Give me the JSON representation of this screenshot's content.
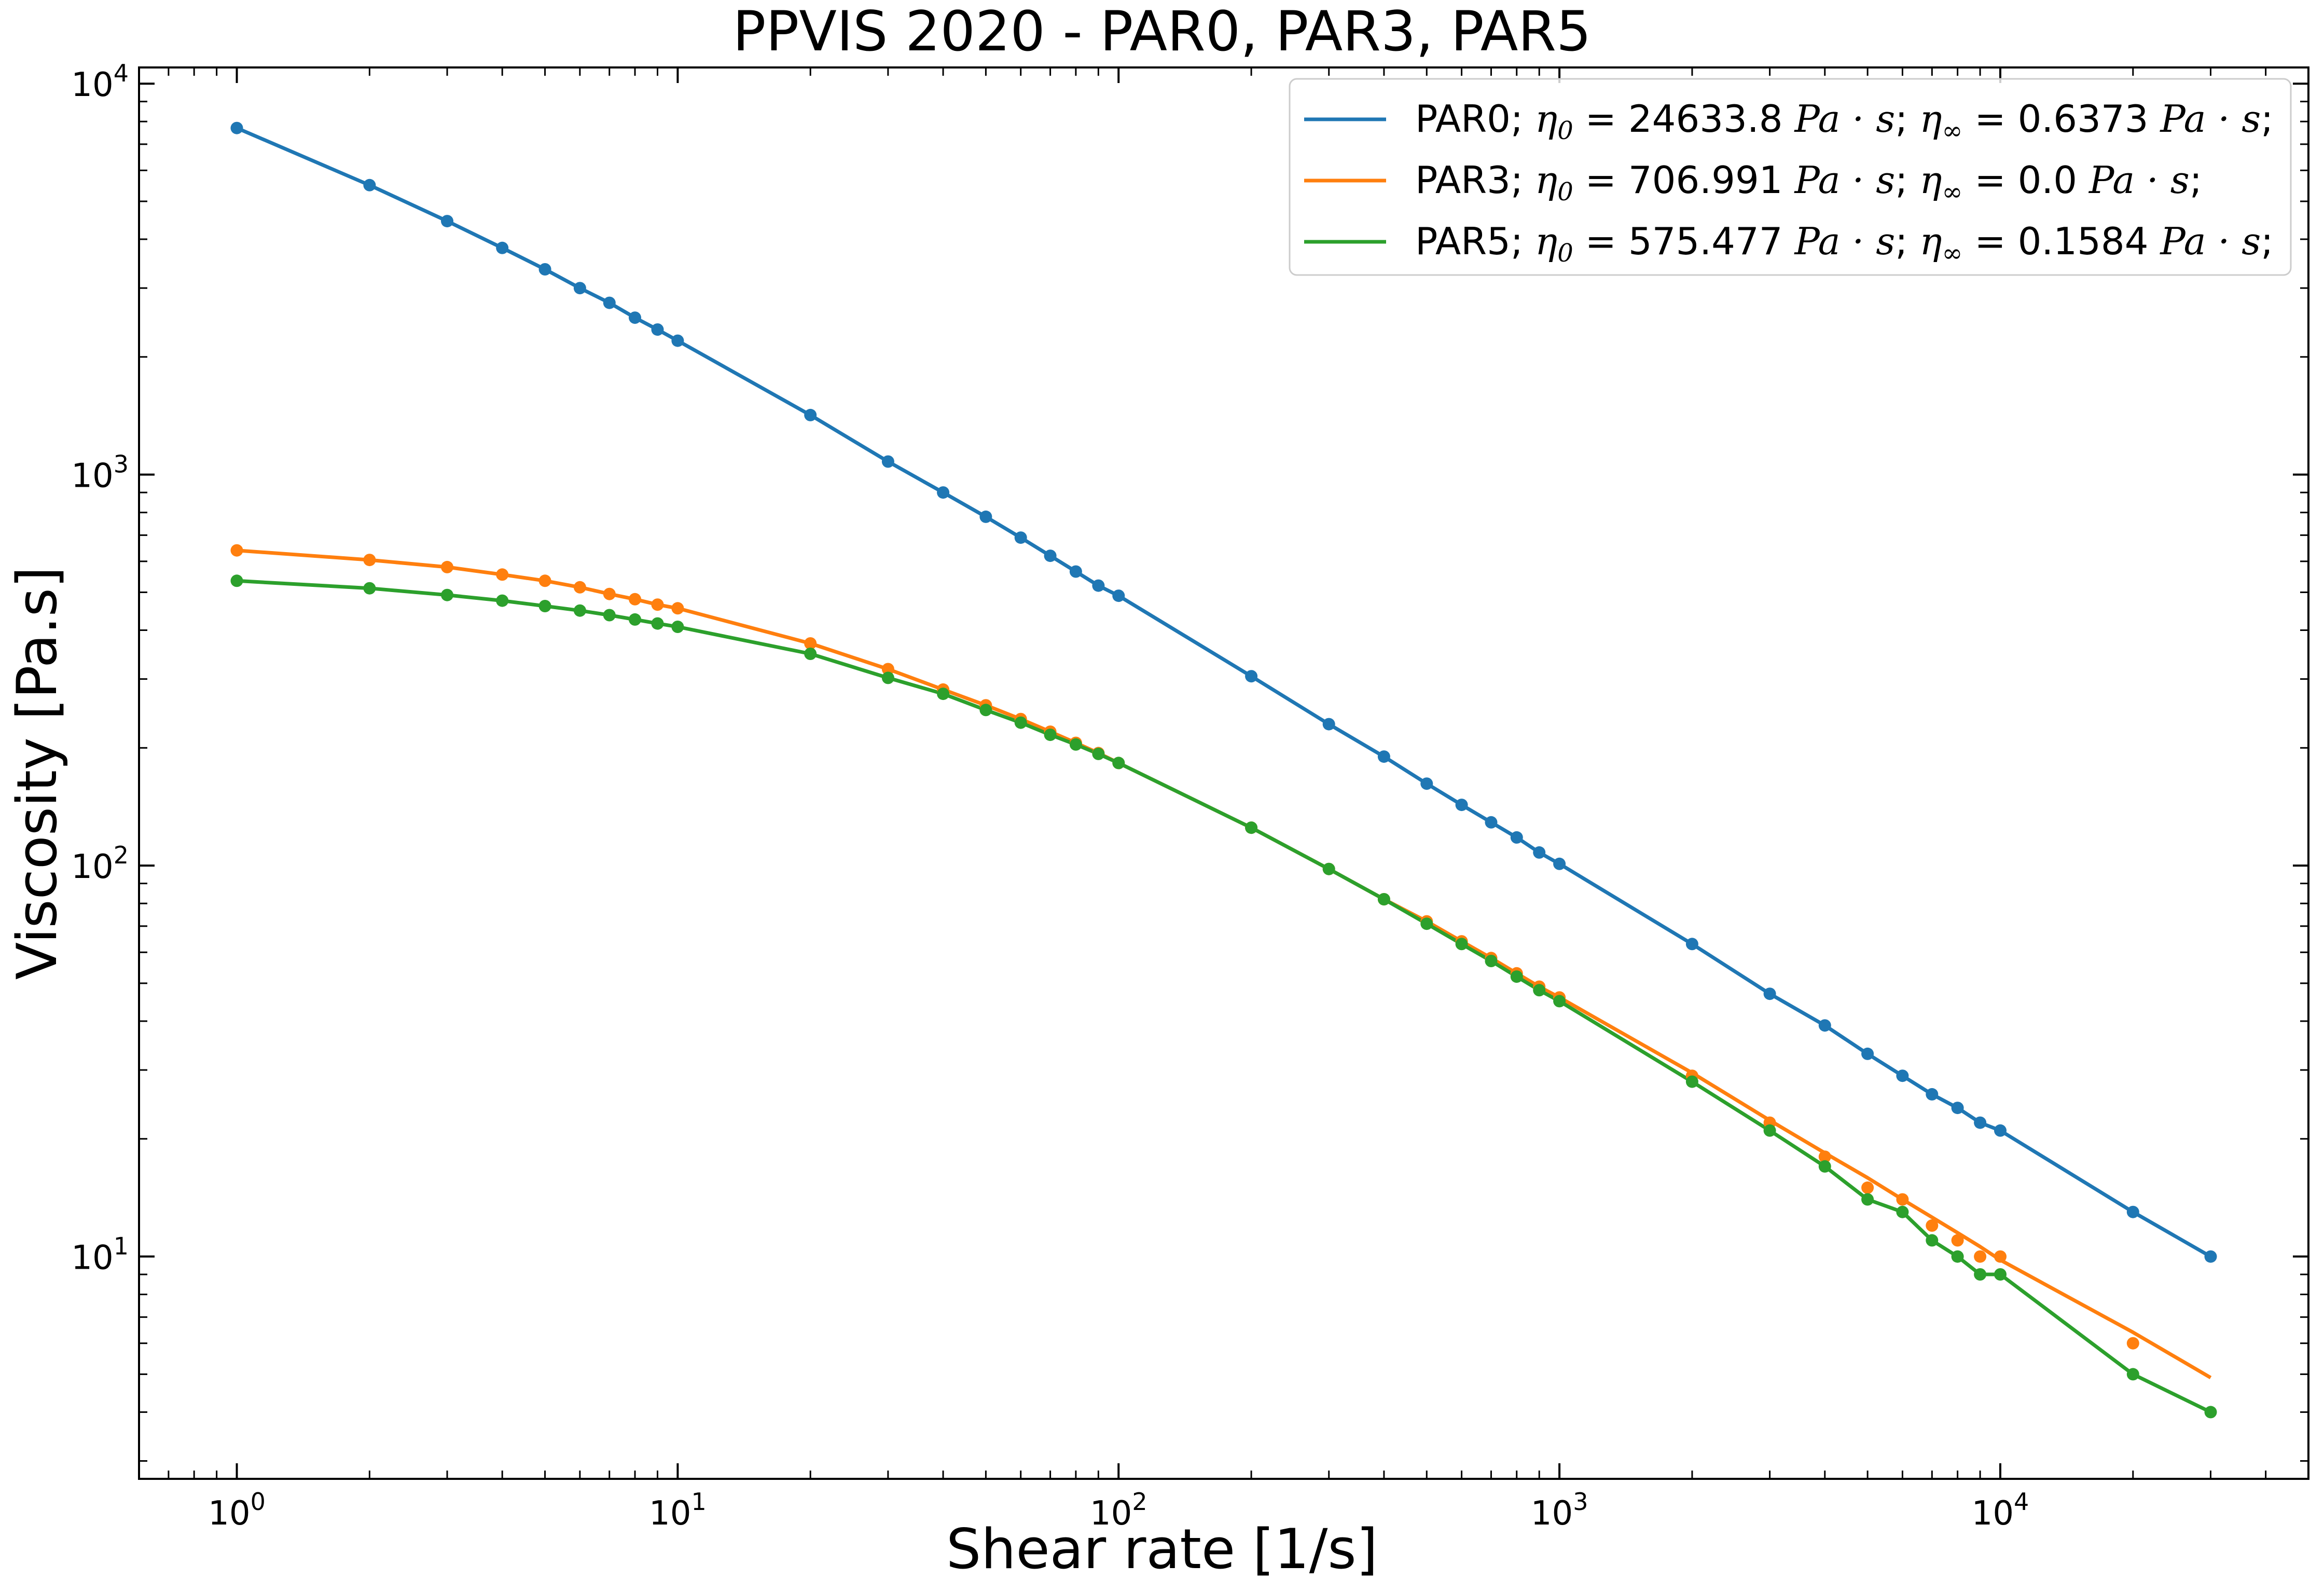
{
  "chart_data": {
    "type": "line",
    "title": "PPVIS 2020 - PAR0, PAR3, PAR5",
    "xlabel": "Shear rate [1/s]",
    "ylabel": "Viscosity [Pa.s]",
    "x_scale": "log",
    "y_scale": "log",
    "xlim": [
      0.6,
      50000
    ],
    "ylim": [
      2.7,
      11000
    ],
    "x_ticks": [
      {
        "value": 1,
        "base": "10",
        "exp": "0"
      },
      {
        "value": 10,
        "base": "10",
        "exp": "1"
      },
      {
        "value": 100,
        "base": "10",
        "exp": "2"
      },
      {
        "value": 1000,
        "base": "10",
        "exp": "3"
      },
      {
        "value": 10000,
        "base": "10",
        "exp": "4"
      }
    ],
    "y_ticks": [
      {
        "value": 10,
        "base": "10",
        "exp": "1"
      },
      {
        "value": 100,
        "base": "10",
        "exp": "2"
      },
      {
        "value": 1000,
        "base": "10",
        "exp": "3"
      },
      {
        "value": 10000,
        "base": "10",
        "exp": "4"
      }
    ],
    "legend_position": "top-right",
    "grid": false,
    "x": [
      1,
      2,
      3,
      4,
      5,
      6,
      7,
      8,
      9,
      10,
      20,
      30,
      40,
      50,
      60,
      70,
      80,
      90,
      100,
      200,
      300,
      400,
      500,
      600,
      700,
      800,
      900,
      1000,
      2000,
      3000,
      4000,
      5000,
      6000,
      7000,
      8000,
      9000,
      10000,
      20000,
      30000
    ],
    "series": [
      {
        "name": "PAR0",
        "color": "#1f77b4",
        "legend": {
          "name": "PAR0",
          "eta0_symbol": "η",
          "eta0_sub": "0",
          "eta0_value": "24633.8",
          "etainf_symbol": "η",
          "etainf_sub": "∞",
          "etainf_value": "0.6373",
          "unit": "Pa · s"
        },
        "values": [
          7700,
          5500,
          4450,
          3800,
          3350,
          3000,
          2750,
          2520,
          2350,
          2200,
          1420,
          1080,
          900,
          780,
          690,
          620,
          565,
          520,
          490,
          305,
          230,
          190,
          162,
          143,
          129,
          118,
          108,
          101,
          63,
          47,
          39,
          33,
          29,
          26,
          24,
          22,
          21,
          13,
          10
        ]
      },
      {
        "name": "PAR3",
        "color": "#ff7f0e",
        "legend": {
          "name": "PAR3",
          "eta0_symbol": "η",
          "eta0_sub": "0",
          "eta0_value": "706.991",
          "etainf_symbol": "η",
          "etainf_sub": "∞",
          "etainf_value": "0.0",
          "unit": "Pa · s"
        },
        "values": [
          640,
          605,
          580,
          555,
          535,
          515,
          495,
          480,
          465,
          455,
          370,
          318,
          282,
          257,
          237,
          220,
          206,
          194,
          183,
          125,
          98,
          82,
          72,
          64,
          58,
          53,
          49,
          46,
          29,
          22,
          18,
          15,
          14,
          12,
          11,
          10,
          10,
          6,
          null
        ],
        "fit": [
          640,
          605,
          580,
          555,
          535,
          515,
          495,
          480,
          465,
          455,
          370,
          318,
          282,
          257,
          237,
          220,
          206,
          194,
          183,
          125,
          98,
          82,
          72,
          64,
          58,
          53,
          49,
          46,
          29.5,
          22.3,
          18.4,
          15.9,
          14.0,
          12.6,
          11.5,
          10.6,
          9.8,
          6.4,
          4.9
        ]
      },
      {
        "name": "PAR5",
        "color": "#2ca02c",
        "legend": {
          "name": "PAR5",
          "eta0_symbol": "η",
          "eta0_sub": "0",
          "eta0_value": "575.477",
          "etainf_symbol": "η",
          "etainf_sub": "∞",
          "etainf_value": "0.1584",
          "unit": "Pa · s"
        },
        "values": [
          535,
          512,
          492,
          476,
          461,
          449,
          437,
          426,
          416,
          408,
          348,
          302,
          275,
          250,
          232,
          216,
          204,
          193,
          183,
          125,
          98,
          82,
          71,
          63,
          57,
          52,
          48,
          45,
          28,
          21,
          17,
          14,
          13,
          11,
          10,
          9,
          9,
          5,
          4
        ]
      }
    ]
  }
}
